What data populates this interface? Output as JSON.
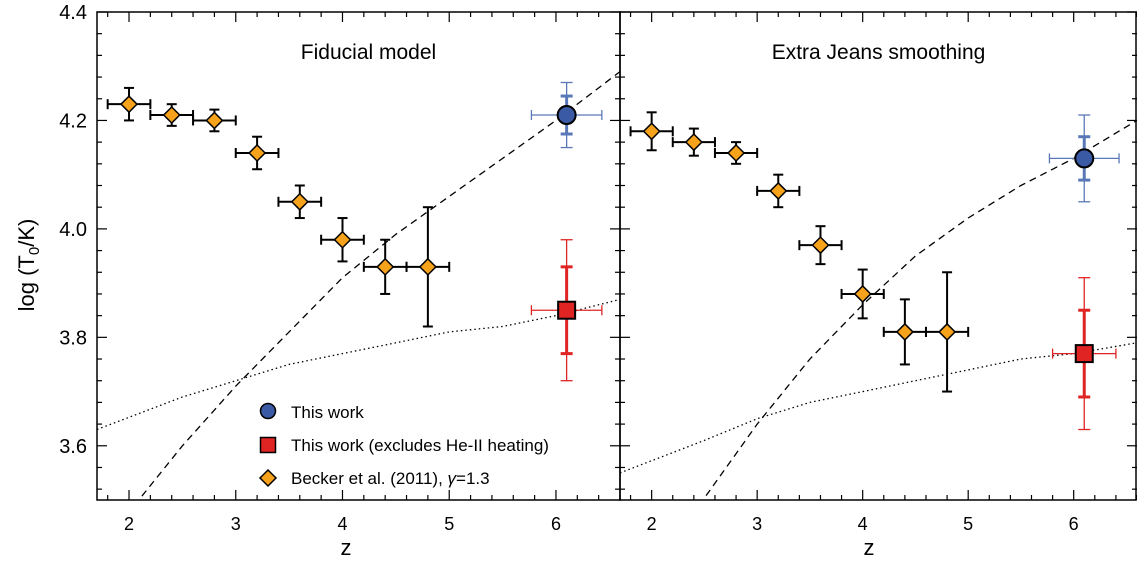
{
  "chart_data": {
    "type": "scatter",
    "ylabel": "log (T",
    "ylabel_sub": "0",
    "ylabel_suffix": "/K)",
    "xlabel": "z",
    "xlim": [
      1.7,
      6.6
    ],
    "ylim": [
      3.5,
      4.4
    ],
    "x_ticks": [
      2,
      3,
      4,
      5,
      6
    ],
    "y_ticks": [
      3.6,
      3.8,
      4.0,
      4.2,
      4.4
    ],
    "y_tick_labels": [
      "3.6",
      "3.8",
      "4.0",
      "4.2",
      "4.4"
    ],
    "colors": {
      "this_work": "#3a5aa6",
      "this_work_err": "#5a78b8",
      "heii": "#e02424",
      "becker": "#f7a21b"
    },
    "legend": {
      "placement": "lower-center-of-left-panel",
      "entries": [
        {
          "marker": "circle",
          "label": "This work"
        },
        {
          "marker": "square",
          "label": "This work (excludes He-II heating)"
        },
        {
          "marker": "diamond",
          "label_prefix": "Becker et al. (2011), ",
          "label_gamma": "γ",
          "label_suffix": "=1.3"
        }
      ]
    },
    "panels": [
      {
        "title": "Fiducial model",
        "becker": {
          "x": [
            2.0,
            2.4,
            2.8,
            3.2,
            3.6,
            4.0,
            4.4,
            4.8
          ],
          "y": [
            4.23,
            4.21,
            4.2,
            4.14,
            4.05,
            3.98,
            3.93,
            3.93
          ],
          "xerr": [
            0.2,
            0.2,
            0.2,
            0.2,
            0.2,
            0.2,
            0.2,
            0.2
          ],
          "yerr": [
            0.03,
            0.02,
            0.02,
            0.03,
            0.03,
            0.04,
            0.05,
            0.11
          ]
        },
        "this_work": {
          "x": 6.1,
          "y": 4.21,
          "xerr": 0.33,
          "yerr_inner": 0.035,
          "yerr_outer": 0.06
        },
        "heii": {
          "x": 6.1,
          "y": 3.85,
          "xerr": 0.33,
          "yerr_inner": 0.08,
          "yerr_outer": 0.13
        },
        "dashed_curve": {
          "x": [
            2.05,
            2.5,
            3.0,
            3.5,
            4.0,
            4.5,
            5.0,
            5.5,
            6.0,
            6.6
          ],
          "y": [
            3.49,
            3.6,
            3.71,
            3.81,
            3.91,
            3.99,
            4.06,
            4.13,
            4.2,
            4.29
          ]
        },
        "dotted_curve": {
          "x": [
            1.7,
            2.5,
            3.0,
            3.5,
            4.0,
            4.5,
            5.0,
            5.5,
            6.0,
            6.6
          ],
          "y": [
            3.63,
            3.69,
            3.72,
            3.75,
            3.77,
            3.79,
            3.81,
            3.82,
            3.84,
            3.87
          ]
        }
      },
      {
        "title": "Extra Jeans smoothing",
        "becker": {
          "x": [
            2.0,
            2.4,
            2.8,
            3.2,
            3.6,
            4.0,
            4.4,
            4.8
          ],
          "y": [
            4.18,
            4.16,
            4.14,
            4.07,
            3.97,
            3.88,
            3.81,
            3.81
          ],
          "xerr": [
            0.2,
            0.2,
            0.2,
            0.2,
            0.2,
            0.2,
            0.2,
            0.2
          ],
          "yerr": [
            0.035,
            0.025,
            0.02,
            0.03,
            0.035,
            0.045,
            0.06,
            0.11
          ]
        },
        "this_work": {
          "x": 6.1,
          "y": 4.13,
          "xerr": 0.33,
          "yerr_inner": 0.04,
          "yerr_outer": 0.08
        },
        "heii": {
          "x": 6.1,
          "y": 3.77,
          "xerr": 0.3,
          "yerr_inner": 0.08,
          "yerr_outer": 0.14
        },
        "dashed_curve": {
          "x": [
            2.45,
            3.0,
            3.5,
            4.0,
            4.5,
            5.0,
            5.5,
            6.0,
            6.6
          ],
          "y": [
            3.49,
            3.64,
            3.76,
            3.86,
            3.95,
            4.02,
            4.08,
            4.13,
            4.2
          ]
        },
        "dotted_curve": {
          "x": [
            1.7,
            2.5,
            3.0,
            3.5,
            4.0,
            4.5,
            5.0,
            5.5,
            6.0,
            6.6
          ],
          "y": [
            3.55,
            3.61,
            3.65,
            3.68,
            3.7,
            3.72,
            3.74,
            3.76,
            3.77,
            3.79
          ]
        }
      }
    ]
  }
}
